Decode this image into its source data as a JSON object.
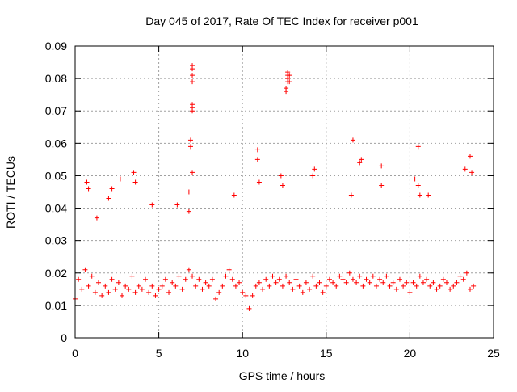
{
  "chart_data": {
    "type": "scatter",
    "title": "Day 045 of 2017, Rate Of TEC Index for receiver p001",
    "xlabel": "GPS time / hours",
    "ylabel": "ROTI / TECUs",
    "xlim": [
      0,
      25
    ],
    "ylim": [
      0,
      0.09
    ],
    "x_ticks": [
      0,
      5,
      10,
      15,
      20,
      25
    ],
    "x_tick_labels": [
      "0",
      "5",
      "10",
      "15",
      "20",
      "25"
    ],
    "y_ticks": [
      0,
      0.01,
      0.02,
      0.03,
      0.04,
      0.05,
      0.06,
      0.07,
      0.08,
      0.09
    ],
    "y_tick_labels": [
      "0",
      "0.01",
      "0.02",
      "0.03",
      "0.04",
      "0.05",
      "0.06",
      "0.07",
      "0.08",
      "0.09"
    ],
    "grid": true,
    "marker": "+",
    "color": "#ff0000",
    "series": [
      {
        "name": "ROTI",
        "x": [
          0.0,
          0.2,
          0.4,
          0.6,
          0.8,
          1.0,
          1.2,
          1.4,
          1.6,
          1.8,
          2.0,
          2.2,
          2.4,
          2.6,
          2.8,
          3.0,
          3.2,
          3.4,
          3.6,
          3.8,
          4.0,
          4.2,
          4.4,
          4.6,
          4.8,
          5.0,
          5.2,
          5.4,
          5.6,
          5.8,
          6.0,
          6.2,
          6.4,
          6.6,
          6.8,
          7.0,
          7.2,
          7.4,
          7.6,
          7.8,
          8.0,
          8.2,
          8.4,
          8.6,
          8.8,
          9.0,
          9.2,
          9.4,
          9.6,
          9.8,
          10.0,
          10.2,
          10.4,
          10.6,
          10.8,
          11.0,
          11.2,
          11.4,
          11.6,
          11.8,
          12.0,
          12.2,
          12.4,
          12.6,
          12.8,
          13.0,
          13.2,
          13.4,
          13.6,
          13.8,
          14.0,
          14.2,
          14.4,
          14.6,
          14.8,
          15.0,
          15.2,
          15.4,
          15.6,
          15.8,
          16.0,
          16.2,
          16.4,
          16.6,
          16.8,
          17.0,
          17.2,
          17.4,
          17.6,
          17.8,
          18.0,
          18.2,
          18.4,
          18.6,
          18.8,
          19.0,
          19.2,
          19.4,
          19.6,
          19.8,
          20.0,
          20.2,
          20.4,
          20.6,
          20.8,
          21.0,
          21.2,
          21.4,
          21.6,
          21.8,
          22.0,
          22.2,
          22.4,
          22.6,
          22.8,
          23.0,
          23.2,
          23.4,
          23.6,
          23.8,
          0.7,
          0.8,
          1.3,
          2.0,
          2.2,
          2.7,
          3.5,
          3.6,
          4.6,
          6.1,
          6.8,
          6.8,
          6.9,
          6.9,
          7.0,
          7.0,
          7.0,
          7.0,
          7.0,
          7.0,
          7.0,
          7.0,
          9.5,
          10.9,
          10.9,
          11.0,
          12.3,
          12.4,
          12.6,
          12.6,
          12.7,
          12.7,
          12.7,
          12.7,
          12.8,
          12.8,
          14.2,
          14.3,
          16.5,
          16.6,
          17.0,
          17.1,
          18.3,
          18.3,
          20.3,
          20.5,
          20.5,
          20.6,
          21.1,
          23.3,
          23.6,
          23.7
        ],
        "y": [
          0.012,
          0.018,
          0.015,
          0.021,
          0.016,
          0.019,
          0.014,
          0.017,
          0.013,
          0.016,
          0.014,
          0.018,
          0.015,
          0.017,
          0.013,
          0.016,
          0.015,
          0.019,
          0.014,
          0.016,
          0.015,
          0.018,
          0.014,
          0.016,
          0.013,
          0.015,
          0.016,
          0.018,
          0.014,
          0.017,
          0.016,
          0.019,
          0.015,
          0.018,
          0.021,
          0.019,
          0.016,
          0.018,
          0.015,
          0.017,
          0.016,
          0.018,
          0.012,
          0.014,
          0.016,
          0.019,
          0.021,
          0.018,
          0.016,
          0.017,
          0.014,
          0.013,
          0.009,
          0.013,
          0.016,
          0.017,
          0.015,
          0.018,
          0.016,
          0.019,
          0.017,
          0.018,
          0.016,
          0.019,
          0.017,
          0.015,
          0.018,
          0.016,
          0.014,
          0.017,
          0.015,
          0.019,
          0.016,
          0.017,
          0.014,
          0.016,
          0.018,
          0.017,
          0.016,
          0.019,
          0.018,
          0.017,
          0.02,
          0.018,
          0.017,
          0.019,
          0.016,
          0.018,
          0.017,
          0.019,
          0.016,
          0.018,
          0.017,
          0.019,
          0.016,
          0.017,
          0.015,
          0.018,
          0.016,
          0.017,
          0.014,
          0.017,
          0.016,
          0.019,
          0.017,
          0.018,
          0.016,
          0.017,
          0.015,
          0.016,
          0.018,
          0.017,
          0.015,
          0.016,
          0.017,
          0.019,
          0.018,
          0.02,
          0.015,
          0.016,
          0.048,
          0.046,
          0.037,
          0.043,
          0.046,
          0.049,
          0.051,
          0.048,
          0.041,
          0.041,
          0.039,
          0.045,
          0.059,
          0.061,
          0.051,
          0.07,
          0.071,
          0.072,
          0.079,
          0.081,
          0.083,
          0.084,
          0.044,
          0.058,
          0.055,
          0.048,
          0.05,
          0.047,
          0.076,
          0.077,
          0.079,
          0.08,
          0.081,
          0.082,
          0.081,
          0.079,
          0.05,
          0.052,
          0.044,
          0.061,
          0.054,
          0.055,
          0.053,
          0.047,
          0.049,
          0.047,
          0.059,
          0.044,
          0.044,
          0.052,
          0.056,
          0.051
        ]
      }
    ]
  }
}
